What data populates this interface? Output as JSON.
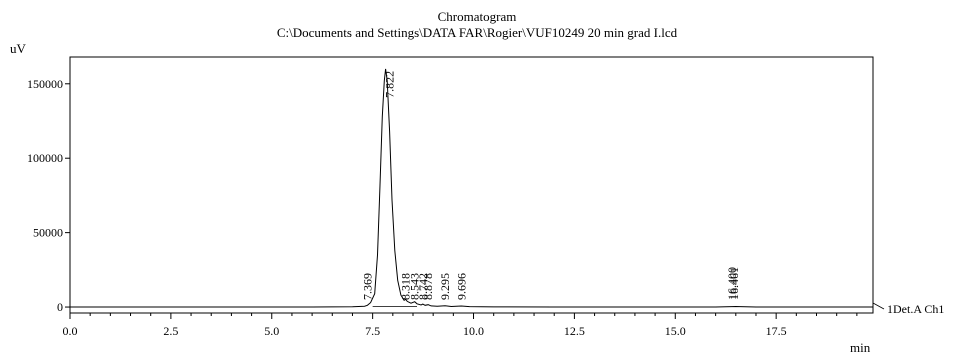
{
  "chart_data": {
    "type": "line",
    "title": "Chromatogram",
    "subtitle": "C:\\Documents and Settings\\DATA FAR\\Rogier\\VUF10249 20 min grad I.lcd",
    "xlabel": "min",
    "ylabel": "uV",
    "xlim": [
      0,
      19.9
    ],
    "ylim": [
      -4000,
      168000
    ],
    "xticks": [
      0.0,
      2.5,
      5.0,
      7.5,
      10.0,
      12.5,
      15.0,
      17.5
    ],
    "xtick_labels": [
      "0.0",
      "2.5",
      "5.0",
      "7.5",
      "10.0",
      "12.5",
      "15.0",
      "17.5"
    ],
    "yticks": [
      0,
      50000,
      100000,
      150000
    ],
    "ytick_labels": [
      "0",
      "50000",
      "100000",
      "150000"
    ],
    "series": [
      {
        "name": "1Det.A Ch1",
        "x": [
          0,
          2,
          4,
          6,
          7.0,
          7.3,
          7.369,
          7.45,
          7.55,
          7.62,
          7.68,
          7.74,
          7.79,
          7.822,
          7.86,
          7.92,
          7.98,
          8.05,
          8.12,
          8.2,
          8.28,
          8.318,
          8.36,
          8.45,
          8.543,
          8.6,
          8.7,
          8.742,
          8.8,
          8.878,
          8.95,
          9.1,
          9.295,
          9.45,
          9.696,
          9.9,
          10.5,
          12,
          14,
          16,
          16.4,
          16.5,
          16.6,
          17,
          18,
          19.9
        ],
        "y": [
          0,
          0,
          0,
          0,
          200,
          600,
          1200,
          3000,
          9000,
          35000,
          80000,
          128000,
          152000,
          160000,
          152000,
          118000,
          72000,
          38000,
          18000,
          8000,
          4500,
          5200,
          3800,
          2600,
          3600,
          2200,
          1400,
          2000,
          1200,
          1600,
          800,
          500,
          900,
          400,
          700,
          300,
          100,
          50,
          0,
          0,
          300,
          400,
          300,
          0,
          0,
          0
        ]
      }
    ],
    "peak_labels": [
      "7.369",
      "7.822",
      "8.318",
      "8.543",
      "8.742",
      "8.878",
      "9.295",
      "9.696",
      "16.400",
      "16.461"
    ],
    "peak_positions": [
      7.369,
      7.822,
      8.318,
      8.543,
      8.742,
      8.878,
      9.295,
      9.696,
      16.4,
      16.461
    ],
    "grid": false,
    "legend": "right"
  }
}
